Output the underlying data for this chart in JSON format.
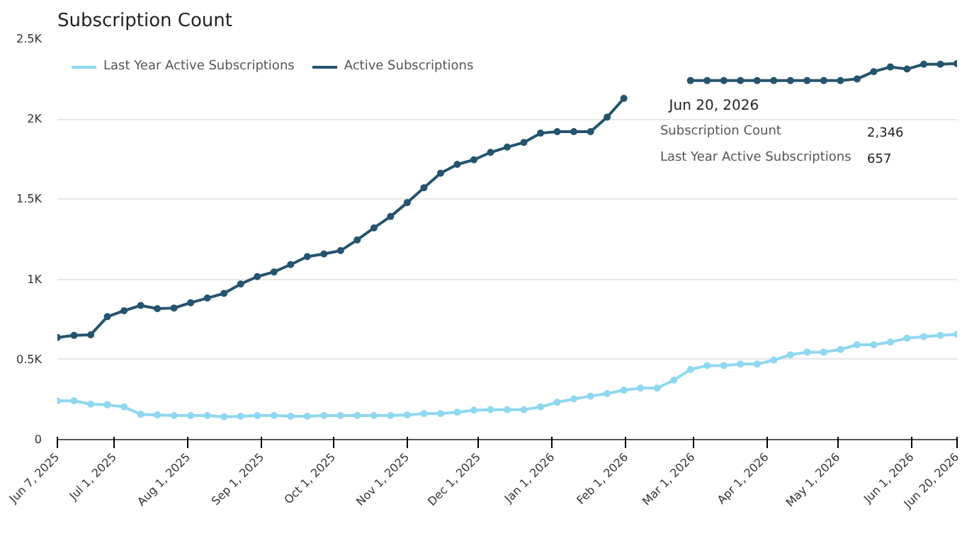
{
  "chart_data": {
    "type": "line",
    "title": "Subscription Count",
    "x": [
      "2025-06-07",
      "2025-06-14",
      "2025-06-21",
      "2025-06-28",
      "2025-07-05",
      "2025-07-12",
      "2025-07-19",
      "2025-07-26",
      "2025-08-02",
      "2025-08-09",
      "2025-08-16",
      "2025-08-23",
      "2025-08-30",
      "2025-09-06",
      "2025-09-13",
      "2025-09-20",
      "2025-09-27",
      "2025-10-04",
      "2025-10-11",
      "2025-10-18",
      "2025-10-25",
      "2025-11-01",
      "2025-11-08",
      "2025-11-15",
      "2025-11-22",
      "2025-11-29",
      "2025-12-06",
      "2025-12-13",
      "2025-12-20",
      "2025-12-27",
      "2026-01-03",
      "2026-01-10",
      "2026-01-17",
      "2026-01-24",
      "2026-01-31",
      "2026-02-07",
      "2026-02-14",
      "2026-02-21",
      "2026-02-28",
      "2026-03-07",
      "2026-03-14",
      "2026-03-21",
      "2026-03-28",
      "2026-04-04",
      "2026-04-11",
      "2026-04-18",
      "2026-04-25",
      "2026-05-02",
      "2026-05-09",
      "2026-05-16",
      "2026-05-23",
      "2026-05-30",
      "2026-06-06",
      "2026-06-13",
      "2026-06-20"
    ],
    "series": [
      {
        "name": "Last Year Active Subscriptions",
        "color": "#8fd8f0",
        "values": [
          242,
          242,
          221,
          217,
          204,
          158,
          154,
          150,
          150,
          150,
          142,
          146,
          150,
          150,
          146,
          146,
          150,
          150,
          150,
          150,
          150,
          154,
          162,
          162,
          171,
          183,
          187,
          187,
          187,
          204,
          233,
          254,
          271,
          287,
          308,
          321,
          321,
          371,
          437,
          462,
          462,
          471,
          471,
          496,
          529,
          546,
          546,
          562,
          592,
          592,
          608,
          633,
          642,
          650,
          657
        ]
      },
      {
        "name": "Active Subscriptions",
        "color": "#25546e",
        "values": [
          637,
          650,
          654,
          767,
          804,
          837,
          817,
          821,
          854,
          883,
          912,
          971,
          1017,
          1046,
          1092,
          1142,
          1158,
          1179,
          1246,
          1321,
          1392,
          1479,
          1571,
          1662,
          1717,
          1746,
          1792,
          1825,
          1854,
          1912,
          1921,
          1921,
          1921,
          2012,
          2129,
          null,
          null,
          null,
          2240,
          2240,
          2240,
          2240,
          2240,
          2240,
          2240,
          2240,
          2240,
          2240,
          2250,
          2296,
          2325,
          2312,
          2342,
          2342,
          2346
        ]
      }
    ],
    "ylim": [
      0,
      2500
    ],
    "yticks": [
      0,
      {
        "value": 500,
        "label": "0.5K"
      },
      {
        "value": 1000,
        "label": "1K"
      },
      {
        "value": 1500,
        "label": "1.5K"
      },
      {
        "value": 2000,
        "label": "2K"
      },
      {
        "value": 2500,
        "label": "2.5K"
      }
    ],
    "xlim": [
      "2025-06-07",
      "2026-06-20"
    ],
    "xticks": [
      {
        "value": "2025-06-07",
        "label": "Jun 7, 2025"
      },
      {
        "value": "2025-07-01",
        "label": "Jul 1, 2025"
      },
      {
        "value": "2025-08-01",
        "label": "Aug 1, 2025"
      },
      {
        "value": "2025-09-01",
        "label": "Sep 1, 2025"
      },
      {
        "value": "2025-10-01",
        "label": "Oct 1, 2025"
      },
      {
        "value": "2025-11-01",
        "label": "Nov 1, 2025"
      },
      {
        "value": "2025-12-01",
        "label": "Dec 1, 2025"
      },
      {
        "value": "2026-01-01",
        "label": "Jan 1, 2026"
      },
      {
        "value": "2026-02-01",
        "label": "Feb 1, 2026"
      },
      {
        "value": "2026-03-01",
        "label": "Mar 1, 2026"
      },
      {
        "value": "2026-04-01",
        "label": "Apr 1, 2026"
      },
      {
        "value": "2026-05-01",
        "label": "May 1, 2026"
      },
      {
        "value": "2026-06-01",
        "label": "Jun 1, 2026"
      },
      {
        "value": "2026-06-20",
        "label": "Jun 20, 2026"
      }
    ],
    "annotations": [
      "Jun 20, 2026",
      "Subscription Count",
      "2,346",
      "Last Year Active Subscriptions",
      "657"
    ],
    "grid": "y",
    "legend": "top left",
    "marker": "circle",
    "line_style": "solid"
  }
}
